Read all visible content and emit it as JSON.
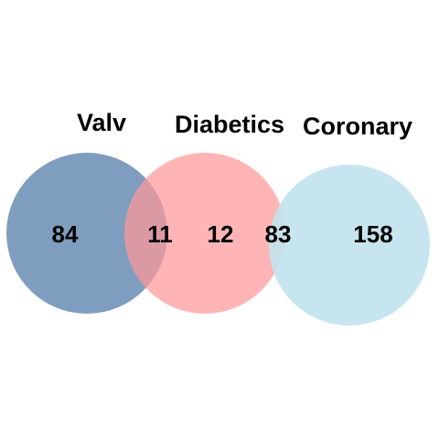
{
  "sets": [
    {
      "name": "Valv",
      "color": "#7f9dbe",
      "opacity": 1.0
    },
    {
      "name": "Diabetics",
      "color": "#ff9999",
      "opacity": 0.72
    },
    {
      "name": "Coronary",
      "color": "#c2e3ee",
      "opacity": 0.92
    }
  ],
  "regions": {
    "valv_only": "84",
    "valv_diabetics": "11",
    "diabetics_only": "12",
    "diabetics_coronary": "83",
    "coronary_only": "158"
  }
}
